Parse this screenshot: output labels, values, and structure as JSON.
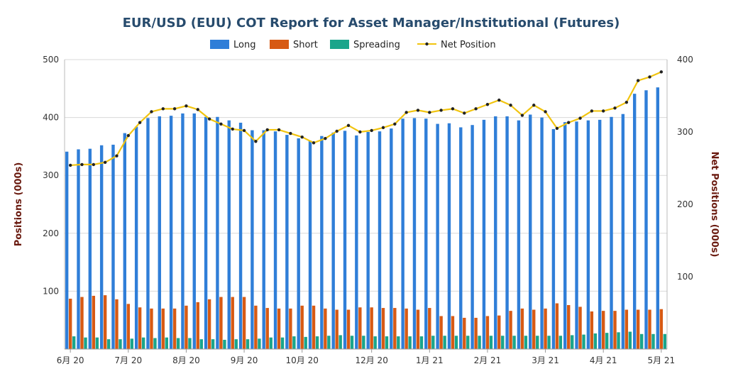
{
  "chart_data": {
    "type": "bar",
    "title": "EUR/USD (EUU) COT Report for Asset Manager/Institutional (Futures)",
    "ylabel": "Positions (000s)",
    "y2label": "Net Positions (000s)",
    "ylim": [
      0,
      500
    ],
    "y2lim": [
      0,
      400
    ],
    "yticks": [
      "100",
      "200",
      "300",
      "400",
      "500"
    ],
    "y2ticks": [
      "100",
      "200",
      "300",
      "400"
    ],
    "xtick_labels": [
      "6月 20",
      "7月 20",
      "8月 20",
      "9月 20",
      "10月 20",
      "12月 20",
      "1月 21",
      "2月 21",
      "3月 21",
      "4月 21",
      "5月 21"
    ],
    "xtick_index": [
      0,
      5,
      10,
      15,
      20,
      26,
      31,
      36,
      41,
      46,
      51
    ],
    "grid": true,
    "legend_position": "top",
    "colors": {
      "long": "#2f7ed8",
      "short": "#d75a14",
      "spreading": "#1aa58b",
      "net": "#f1c40f",
      "net_marker": "#222222"
    },
    "series": [
      {
        "name": "Long",
        "type": "bar",
        "values": [
          341,
          345,
          346,
          352,
          353,
          373,
          384,
          399,
          402,
          403,
          407,
          407,
          401,
          401,
          395,
          391,
          378,
          378,
          376,
          370,
          364,
          360,
          368,
          374,
          377,
          369,
          375,
          376,
          381,
          398,
          399,
          398,
          389,
          390,
          383,
          387,
          396,
          402,
          402,
          395,
          405,
          400,
          380,
          392,
          393,
          395,
          396,
          401,
          406,
          441,
          447,
          452
        ]
      },
      {
        "name": "Short",
        "type": "bar",
        "values": [
          87,
          90,
          92,
          93,
          86,
          78,
          72,
          70,
          70,
          70,
          75,
          81,
          86,
          90,
          90,
          90,
          75,
          71,
          70,
          70,
          75,
          75,
          70,
          68,
          68,
          72,
          72,
          71,
          71,
          70,
          68,
          71,
          57,
          57,
          54,
          54,
          57,
          58,
          66,
          70,
          68,
          70,
          79,
          76,
          73,
          65,
          66,
          66,
          68,
          68,
          68,
          69
        ]
      },
      {
        "name": "Spreading",
        "type": "bar",
        "values": [
          22,
          20,
          20,
          17,
          17,
          18,
          20,
          19,
          20,
          19,
          19,
          17,
          17,
          16,
          17,
          17,
          18,
          20,
          20,
          22,
          21,
          22,
          23,
          24,
          23,
          23,
          22,
          22,
          22,
          22,
          22,
          23,
          23,
          23,
          23,
          23,
          23,
          23,
          23,
          23,
          23,
          23,
          23,
          24,
          25,
          27,
          28,
          29,
          30,
          26,
          26,
          26
        ]
      },
      {
        "name": "Net Position",
        "type": "line",
        "values": [
          254,
          255,
          255,
          258,
          267,
          295,
          313,
          328,
          332,
          332,
          336,
          331,
          318,
          311,
          304,
          302,
          287,
          303,
          303,
          298,
          293,
          285,
          291,
          301,
          309,
          300,
          302,
          306,
          311,
          327,
          330,
          327,
          330,
          332,
          326,
          332,
          338,
          344,
          337,
          323,
          337,
          328,
          305,
          313,
          319,
          329,
          329,
          333,
          341,
          371,
          376,
          383
        ]
      }
    ]
  }
}
